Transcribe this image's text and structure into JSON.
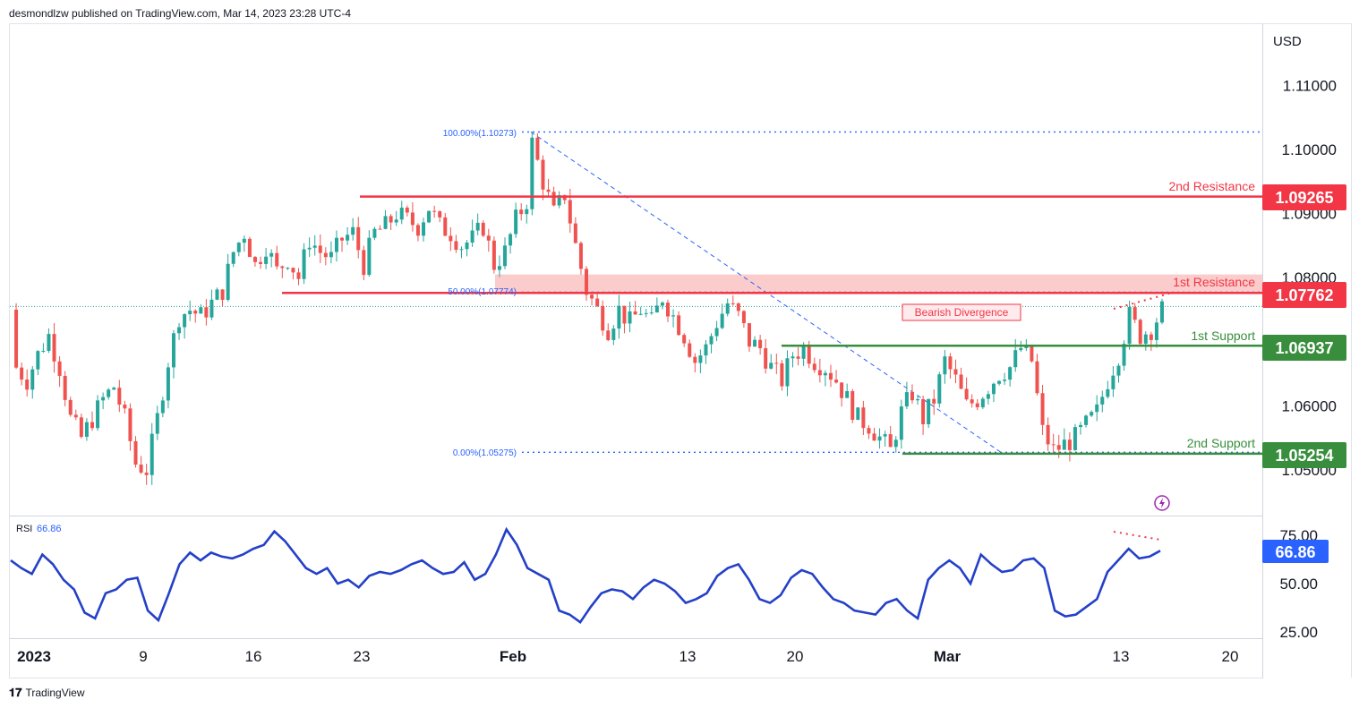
{
  "header": {
    "publisher_text": "desmondlzw published on TradingView.com, Mar 14, 2023 23:28 UTC-4"
  },
  "footer": {
    "brand": "TradingView"
  },
  "axis": {
    "currency": "USD",
    "price_ticks": [
      "1.11000",
      "1.10000",
      "1.09000",
      "1.08000",
      "1.06000",
      "1.05000"
    ],
    "rsi_ticks": [
      "75.00",
      "50.00",
      "25.00"
    ],
    "time_ticks": [
      "2023",
      "9",
      "16",
      "23",
      "Feb",
      "13",
      "20",
      "Mar",
      "13",
      "20"
    ]
  },
  "colors": {
    "up": "#26a69a",
    "down": "#ef5350",
    "resistance": "#f23645",
    "support": "#388e3c",
    "fib": "#2962ff",
    "rsi": "#2440c8",
    "zone": "#f8bbbb"
  },
  "levels": {
    "r2": {
      "label": "2nd Resistance",
      "badge": "1.09265",
      "price": 1.09265
    },
    "r1": {
      "label": "1st Resistance",
      "badge": "1.07762",
      "price": 1.07762
    },
    "s1": {
      "label": "1st Support",
      "badge": "1.06937",
      "price": 1.06937
    },
    "s2": {
      "label": "2nd Support",
      "badge": "1.05254",
      "price": 1.05254
    }
  },
  "fib": {
    "f100": {
      "label": "100.00%(1.10273)",
      "price": 1.10273
    },
    "f50": {
      "label": "50.00%(1.07774)",
      "price": 1.07774
    },
    "f0": {
      "label": "0.00%(1.05275)",
      "price": 1.05275
    }
  },
  "annotation": {
    "divergence": "Bearish Divergence"
  },
  "rsi": {
    "label": "RSI",
    "value": "66.86"
  },
  "chart_data": {
    "type": "candlestick",
    "ylim": [
      1.045,
      1.12
    ],
    "current_price": 1.0755,
    "resistance_zone": [
      1.0776,
      1.0805
    ],
    "x_ticks": [
      "2023",
      "9",
      "16",
      "23",
      "Feb",
      "13",
      "20",
      "Mar",
      "13",
      "20"
    ],
    "close_path": [
      [
        1,
        1.066
      ],
      [
        3,
        1.064
      ],
      [
        5,
        1.068
      ],
      [
        7,
        1.071
      ],
      [
        9,
        1.066
      ],
      [
        11,
        1.058
      ],
      [
        13,
        1.055
      ],
      [
        15,
        1.058
      ],
      [
        17,
        1.061
      ],
      [
        19,
        1.063
      ],
      [
        21,
        1.058
      ],
      [
        23,
        1.051
      ],
      [
        25,
        1.05
      ],
      [
        27,
        1.058
      ],
      [
        29,
        1.067
      ],
      [
        31,
        1.074
      ],
      [
        33,
        1.075
      ],
      [
        35,
        1.074
      ],
      [
        37,
        1.076
      ],
      [
        39,
        1.078
      ],
      [
        41,
        1.084
      ],
      [
        43,
        1.087
      ],
      [
        45,
        1.082
      ],
      [
        47,
        1.085
      ],
      [
        49,
        1.081
      ],
      [
        51,
        1.083
      ],
      [
        53,
        1.08
      ],
      [
        55,
        1.086
      ],
      [
        57,
        1.084
      ],
      [
        59,
        1.083
      ],
      [
        61,
        1.086
      ],
      [
        63,
        1.087
      ],
      [
        65,
        1.082
      ],
      [
        67,
        1.087
      ],
      [
        69,
        1.088
      ],
      [
        71,
        1.09
      ],
      [
        73,
        1.089
      ],
      [
        75,
        1.088
      ],
      [
        77,
        1.091
      ],
      [
        79,
        1.088
      ],
      [
        81,
        1.087
      ],
      [
        83,
        1.085
      ],
      [
        85,
        1.086
      ],
      [
        87,
        1.088
      ],
      [
        89,
        1.082
      ],
      [
        91,
        1.084
      ],
      [
        93,
        1.089
      ],
      [
        95,
        1.092
      ],
      [
        96,
        1.101
      ],
      [
        98,
        1.095
      ],
      [
        100,
        1.09
      ],
      [
        102,
        1.093
      ],
      [
        104,
        1.085
      ],
      [
        106,
        1.078
      ],
      [
        108,
        1.075
      ],
      [
        110,
        1.072
      ],
      [
        112,
        1.075
      ],
      [
        114,
        1.073
      ],
      [
        116,
        1.075
      ],
      [
        118,
        1.073
      ],
      [
        120,
        1.077
      ],
      [
        122,
        1.074
      ],
      [
        124,
        1.071
      ],
      [
        126,
        1.067
      ],
      [
        128,
        1.069
      ],
      [
        130,
        1.073
      ],
      [
        132,
        1.076
      ],
      [
        134,
        1.074
      ],
      [
        136,
        1.07
      ],
      [
        138,
        1.069
      ],
      [
        140,
        1.066
      ],
      [
        142,
        1.064
      ],
      [
        144,
        1.068
      ],
      [
        146,
        1.069
      ],
      [
        148,
        1.067
      ],
      [
        150,
        1.066
      ],
      [
        152,
        1.064
      ],
      [
        154,
        1.061
      ],
      [
        156,
        1.058
      ],
      [
        158,
        1.057
      ],
      [
        160,
        1.055
      ],
      [
        162,
        1.053
      ],
      [
        164,
        1.059
      ],
      [
        166,
        1.062
      ],
      [
        168,
        1.058
      ],
      [
        170,
        1.061
      ],
      [
        172,
        1.067
      ],
      [
        174,
        1.064
      ],
      [
        176,
        1.06
      ],
      [
        178,
        1.061
      ],
      [
        180,
        1.063
      ],
      [
        182,
        1.065
      ],
      [
        184,
        1.066
      ],
      [
        186,
        1.069
      ],
      [
        188,
        1.067
      ],
      [
        190,
        1.056
      ],
      [
        192,
        1.053
      ],
      [
        194,
        1.054
      ],
      [
        196,
        1.055
      ],
      [
        198,
        1.057
      ],
      [
        200,
        1.059
      ],
      [
        202,
        1.064
      ],
      [
        204,
        1.068
      ],
      [
        206,
        1.074
      ],
      [
        208,
        1.071
      ],
      [
        210,
        1.072
      ],
      [
        212,
        1.075
      ]
    ],
    "rsi_values": [
      62,
      58,
      55,
      65,
      60,
      52,
      47,
      35,
      32,
      45,
      47,
      52,
      53,
      36,
      31,
      45,
      60,
      66,
      62,
      66,
      64,
      63,
      65,
      68,
      70,
      77,
      72,
      65,
      58,
      55,
      58,
      50,
      52,
      48,
      54,
      56,
      55,
      57,
      60,
      62,
      58,
      55,
      56,
      61,
      52,
      55,
      65,
      78,
      70,
      58,
      55,
      52,
      36,
      34,
      30,
      38,
      45,
      47,
      46,
      42,
      48,
      52,
      50,
      46,
      40,
      42,
      45,
      54,
      58,
      60,
      52,
      42,
      40,
      44,
      53,
      57,
      55,
      48,
      42,
      40,
      36,
      35,
      34,
      40,
      42,
      36,
      32,
      52,
      58,
      62,
      58,
      50,
      65,
      60,
      56,
      57,
      62,
      63,
      58,
      36,
      33,
      34,
      38,
      42,
      56,
      62,
      68,
      63,
      64,
      67
    ]
  }
}
